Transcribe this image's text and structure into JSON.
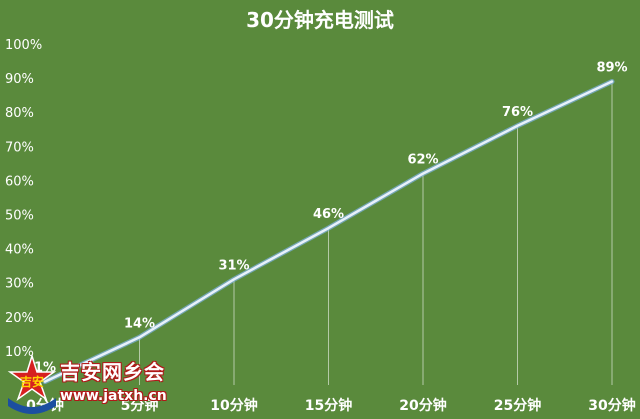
{
  "chart_data": {
    "type": "line",
    "title": "30分钟充电测试",
    "categories": [
      "0分钟",
      "5分钟",
      "10分钟",
      "15分钟",
      "20分钟",
      "25分钟",
      "30分钟"
    ],
    "values": [
      1,
      14,
      31,
      46,
      62,
      76,
      89
    ],
    "data_labels": [
      "1%",
      "14%",
      "31%",
      "46%",
      "62%",
      "76%",
      "89%"
    ],
    "y_ticks": [
      "10%",
      "20%",
      "30%",
      "40%",
      "50%",
      "60%",
      "70%",
      "80%",
      "90%",
      "100%"
    ],
    "ylim": [
      0,
      100
    ],
    "grid": false,
    "colors": {
      "background": "#5a8a3c",
      "line": "#e8f1fb",
      "line_glow": "#7fb2e6",
      "text": "#ffffff"
    }
  },
  "watermark": {
    "name": "吉安网乡会",
    "url": "www.jatxh.cn",
    "logo_text": "吉安"
  }
}
